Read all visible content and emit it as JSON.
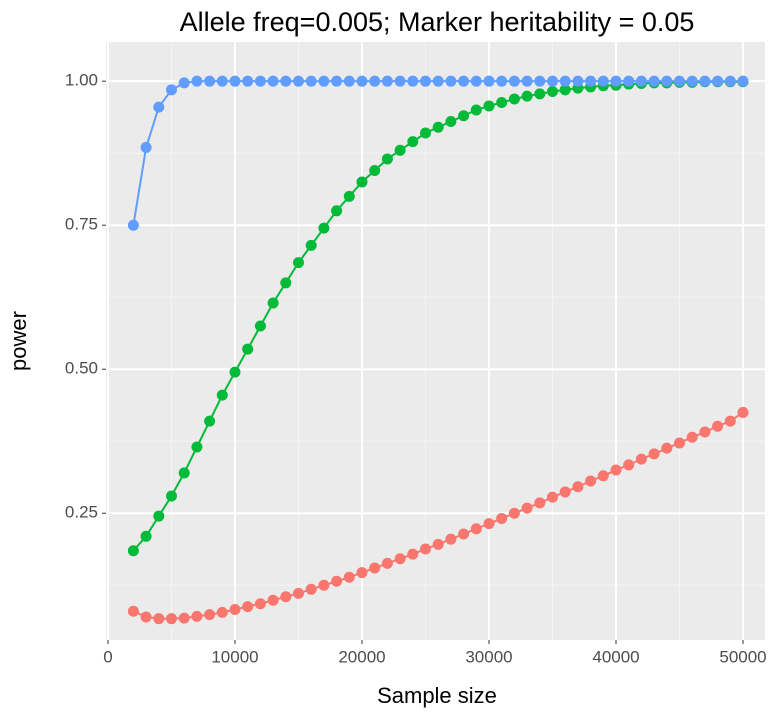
{
  "chart_data": {
    "type": "line",
    "title": "Allele freq=0.005; Marker heritability = 0.05",
    "x_label": "Sample size",
    "y_label": "power",
    "x": [
      2000,
      3000,
      4000,
      5000,
      6000,
      7000,
      8000,
      9000,
      10000,
      11000,
      12000,
      13000,
      14000,
      15000,
      16000,
      17000,
      18000,
      19000,
      20000,
      21000,
      22000,
      23000,
      24000,
      25000,
      26000,
      27000,
      28000,
      29000,
      30000,
      31000,
      32000,
      33000,
      34000,
      35000,
      36000,
      37000,
      38000,
      39000,
      40000,
      41000,
      42000,
      43000,
      44000,
      45000,
      46000,
      47000,
      48000,
      49000,
      50000
    ],
    "series": [
      {
        "color": "#f8766d",
        "values": [
          0.08,
          0.07,
          0.067,
          0.067,
          0.068,
          0.071,
          0.074,
          0.078,
          0.083,
          0.088,
          0.093,
          0.099,
          0.105,
          0.111,
          0.118,
          0.125,
          0.132,
          0.139,
          0.147,
          0.155,
          0.163,
          0.171,
          0.179,
          0.188,
          0.196,
          0.205,
          0.214,
          0.223,
          0.232,
          0.241,
          0.25,
          0.259,
          0.268,
          0.278,
          0.287,
          0.296,
          0.306,
          0.315,
          0.325,
          0.334,
          0.344,
          0.353,
          0.363,
          0.372,
          0.382,
          0.391,
          0.401,
          0.41,
          0.425
        ]
      },
      {
        "color": "#00ba38",
        "values": [
          0.185,
          0.21,
          0.245,
          0.28,
          0.32,
          0.365,
          0.41,
          0.455,
          0.495,
          0.535,
          0.575,
          0.615,
          0.65,
          0.685,
          0.715,
          0.745,
          0.775,
          0.8,
          0.825,
          0.845,
          0.865,
          0.88,
          0.895,
          0.91,
          0.92,
          0.93,
          0.94,
          0.95,
          0.957,
          0.963,
          0.969,
          0.974,
          0.978,
          0.982,
          0.985,
          0.988,
          0.99,
          0.992,
          0.993,
          0.995,
          0.996,
          0.997,
          0.997,
          0.998,
          0.998,
          0.999,
          0.999,
          0.999,
          0.999
        ]
      },
      {
        "color": "#619cff",
        "values": [
          0.75,
          0.885,
          0.955,
          0.985,
          0.997,
          1.0,
          1.0,
          1.0,
          1.0,
          1.0,
          1.0,
          1.0,
          1.0,
          1.0,
          1.0,
          1.0,
          1.0,
          1.0,
          1.0,
          1.0,
          1.0,
          1.0,
          1.0,
          1.0,
          1.0,
          1.0,
          1.0,
          1.0,
          1.0,
          1.0,
          1.0,
          1.0,
          1.0,
          1.0,
          1.0,
          1.0,
          1.0,
          1.0,
          1.0,
          1.0,
          1.0,
          1.0,
          1.0,
          1.0,
          1.0,
          1.0,
          1.0,
          1.0,
          1.0
        ]
      }
    ],
    "xlim": [
      -157,
      51732
    ],
    "ylim": [
      0.03,
      1.068
    ],
    "xticks": [
      0,
      10000,
      20000,
      30000,
      40000,
      50000
    ],
    "yticks": [
      {
        "value": 0.25,
        "label": "0.25"
      },
      {
        "value": 0.5,
        "label": "0.50"
      },
      {
        "value": 0.75,
        "label": "0.75"
      },
      {
        "value": 1.0,
        "label": "1.00"
      }
    ],
    "grid": true
  }
}
